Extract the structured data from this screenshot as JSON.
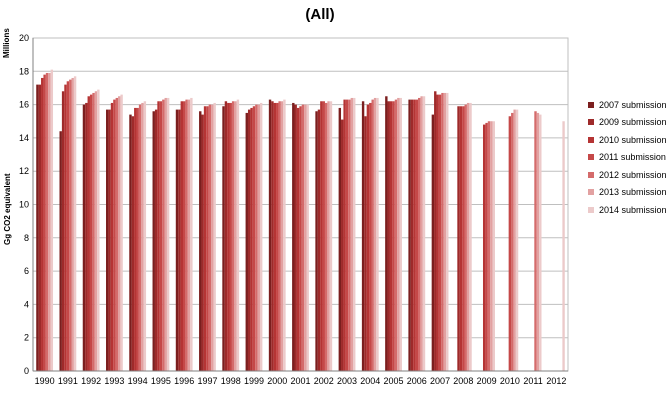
{
  "chart_data": {
    "type": "bar",
    "title": "(All)",
    "ylabel": "Gg CO2 equivalent",
    "multiplier": "Millions",
    "ylim": [
      0,
      20
    ],
    "yticks": [
      "0",
      "2",
      "4",
      "6",
      "8",
      "10",
      "12",
      "14",
      "16",
      "18",
      "20"
    ],
    "grid": true,
    "legend_position": "right",
    "categories": [
      "1990",
      "1991",
      "1992",
      "1993",
      "1994",
      "1995",
      "1996",
      "1997",
      "1998",
      "1999",
      "2000",
      "2001",
      "2002",
      "2003",
      "2004",
      "2005",
      "2006",
      "2007",
      "2008",
      "2009",
      "2010",
      "2011",
      "2012"
    ],
    "series": [
      {
        "name": "2007 submission",
        "color": "#7b1e1e",
        "values": [
          17.2,
          14.4,
          16.0,
          15.7,
          15.4,
          15.6,
          15.7,
          15.6,
          15.9,
          15.5,
          16.3,
          16.1,
          15.6,
          15.8,
          16.2,
          16.5,
          16.3,
          15.4,
          null,
          null,
          null,
          null,
          null
        ]
      },
      {
        "name": "2009 submission",
        "color": "#9e2a2a",
        "values": [
          17.2,
          16.8,
          16.1,
          15.7,
          15.3,
          15.7,
          15.7,
          15.4,
          16.2,
          15.7,
          16.2,
          16.0,
          15.7,
          15.1,
          15.3,
          16.2,
          16.3,
          16.8,
          15.9,
          null,
          null,
          null,
          null
        ]
      },
      {
        "name": "2010 submission",
        "color": "#b53434",
        "values": [
          17.6,
          17.2,
          16.5,
          16.1,
          15.8,
          16.2,
          16.2,
          15.9,
          16.1,
          15.8,
          16.1,
          15.8,
          16.2,
          16.3,
          16.0,
          16.2,
          16.3,
          16.6,
          15.9,
          14.8,
          null,
          null,
          null
        ]
      },
      {
        "name": "2011 submission",
        "color": "#c54848",
        "values": [
          17.8,
          17.4,
          16.6,
          16.3,
          15.8,
          16.2,
          16.2,
          15.9,
          16.1,
          15.9,
          16.1,
          15.9,
          16.2,
          16.3,
          16.1,
          16.2,
          16.3,
          16.6,
          15.9,
          14.9,
          15.3,
          null,
          null
        ]
      },
      {
        "name": "2012 submission",
        "color": "#d46b6b",
        "values": [
          17.9,
          17.5,
          16.7,
          16.4,
          16.0,
          16.3,
          16.3,
          16.0,
          16.2,
          16.0,
          16.2,
          16.0,
          16.1,
          16.3,
          16.3,
          16.3,
          16.4,
          16.7,
          16.0,
          15.0,
          15.5,
          15.6,
          null
        ]
      },
      {
        "name": "2013 submission",
        "color": "#e2a1a1",
        "values": [
          17.9,
          17.6,
          16.8,
          16.5,
          16.1,
          16.4,
          16.3,
          16.0,
          16.2,
          16.0,
          16.2,
          16.0,
          16.2,
          16.4,
          16.4,
          16.4,
          16.5,
          16.7,
          16.1,
          15.0,
          15.7,
          15.5,
          null
        ]
      },
      {
        "name": "2014 submission",
        "color": "#eccaca",
        "values": [
          18.1,
          17.7,
          16.9,
          16.6,
          16.2,
          16.4,
          16.4,
          16.1,
          16.3,
          16.1,
          16.3,
          16.0,
          16.2,
          16.4,
          16.4,
          16.4,
          16.5,
          16.7,
          16.1,
          15.0,
          15.7,
          15.4,
          15.0
        ]
      }
    ]
  }
}
